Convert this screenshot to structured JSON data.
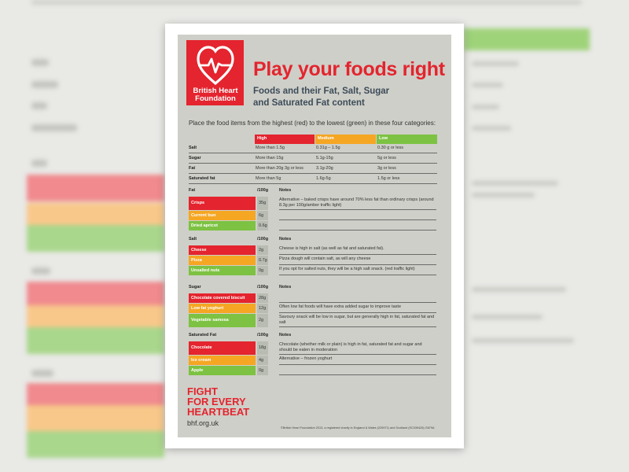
{
  "logo": {
    "line1": "British Heart",
    "line2": "Foundation"
  },
  "title": "Play your foods right",
  "subtitle": [
    "Foods and their Fat, Salt, Sugar",
    "and Saturated Fat content"
  ],
  "instruction": "Place the food items from the highest (red) to the lowest (green) in these four categories:",
  "levels": [
    "High",
    "Medium",
    "Low"
  ],
  "colors": {
    "high": "#e4242e",
    "medium": "#f5a623",
    "low": "#7dc242",
    "brand": "#e4242e"
  },
  "guide": [
    {
      "label": "Salt",
      "high": "More than 1.5g",
      "medium": "0.31g – 1.5g",
      "low": "0.30 g or less"
    },
    {
      "label": "Sugar",
      "high": "More than 15g",
      "medium": "5.1g-15g",
      "low": "5g or less"
    },
    {
      "label": "Fat",
      "high": "More than 20g 3g or less",
      "medium": "3.1g-20g",
      "low": "3g or less"
    },
    {
      "label": "Saturated fat",
      "high": "More than 5g",
      "medium": "1.6g-5g",
      "low": "1.5g or less"
    }
  ],
  "per100g": "/100g",
  "notes_label": "Notes",
  "sections": [
    {
      "name": "Fat",
      "items": [
        {
          "food": "Crisps",
          "level": "high",
          "amount": "35g",
          "note": "Alternative – baked crisps have around 70% less fat than ordinary crisps (around 8.3g per 100g/amber traffic light)"
        },
        {
          "food": "Current bun",
          "level": "medium",
          "amount": "6g",
          "note": ""
        },
        {
          "food": "Dried apricot",
          "level": "low",
          "amount": "0.6g",
          "note": ""
        }
      ]
    },
    {
      "name": "Salt",
      "items": [
        {
          "food": "Cheese",
          "level": "high",
          "amount": "2g",
          "note": "Cheese is high in salt (as well as fat and saturated fat)."
        },
        {
          "food": "Pizza",
          "level": "medium",
          "amount": "0.7g",
          "note": "Pizza dough will contain salt, as will any cheese"
        },
        {
          "food": "Unsalted nuts",
          "level": "low",
          "amount": "0g",
          "note": "If you opt for salted nuts, they will be a high salt snack. (red traffic light)"
        }
      ]
    },
    {
      "name": "Sugar",
      "items": [
        {
          "food": "Chocolate covered biscuit",
          "level": "high",
          "amount": "28g",
          "note": ""
        },
        {
          "food": "Low fat yoghurt",
          "level": "medium",
          "amount": "12g",
          "note": "Often low fat foods will have extra added sugar to improve taste"
        },
        {
          "food": "Vegetable samosa",
          "level": "low",
          "amount": "2g",
          "note": "Savoury snack will be low in sugar, but are generally high in fat, saturated fat and salt"
        }
      ]
    },
    {
      "name": "Saturated Fat",
      "items": [
        {
          "food": "Chocolate",
          "level": "high",
          "amount": "18g",
          "note": "Chocolate (whether milk or plain) is high in fat, saturated fat and sugar and should be eaten in moderation"
        },
        {
          "food": "Ice cream",
          "level": "medium",
          "amount": "4g",
          "note": "Alternative – frozen yoghurt"
        },
        {
          "food": "Apple",
          "level": "low",
          "amount": "0g",
          "note": ""
        }
      ]
    }
  ],
  "footer": {
    "slogan": [
      "FIGHT",
      "FOR EVERY",
      "HEARTBEAT"
    ],
    "url": "bhf.org.uk",
    "charity": "©British Heart Foundation 2013, a registered charity in England & Wales (225971) and Scotland (SC039426) G679A"
  },
  "background_labels": [
    "Salt",
    "Sugar",
    "Fat",
    "Saturated fat",
    "Fat",
    "Crisps",
    "Current bun",
    "Dried apricot",
    "Salt",
    "Cheese",
    "Pizza",
    "Unsalted nuts",
    "Sugar",
    "Chocolate covered biscuit",
    "Low fat yoghurt",
    "Vegetable samosa"
  ]
}
